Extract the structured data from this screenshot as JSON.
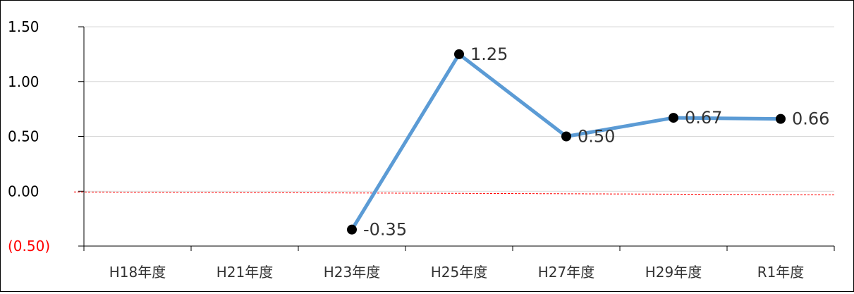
{
  "chart_data": {
    "type": "line",
    "categories": [
      "H18年度",
      "H21年度",
      "H23年度",
      "H25年度",
      "H27年度",
      "H29年度",
      "R1年度"
    ],
    "series": [
      {
        "values": [
          null,
          null,
          -0.35,
          1.25,
          0.5,
          0.67,
          0.66
        ],
        "labels": [
          null,
          null,
          "-0.35",
          "1.25",
          "0.50",
          "0.67",
          "0.66"
        ],
        "line_color": "#5b9bd5",
        "marker_color": "#000000"
      }
    ],
    "y_ticks": [
      {
        "value": 1.5,
        "label": "1.50",
        "color": "#000000"
      },
      {
        "value": 1.0,
        "label": "1.00",
        "color": "#000000"
      },
      {
        "value": 0.5,
        "label": "0.50",
        "color": "#000000"
      },
      {
        "value": 0.0,
        "label": "0.00",
        "color": "#000000"
      },
      {
        "value": -0.5,
        "label": "(0.50)",
        "color": "#ff0000"
      }
    ],
    "ylim": [
      -0.5,
      1.5
    ],
    "grid": true,
    "reference_line": {
      "color": "#ff0000",
      "style": "dashed"
    }
  }
}
